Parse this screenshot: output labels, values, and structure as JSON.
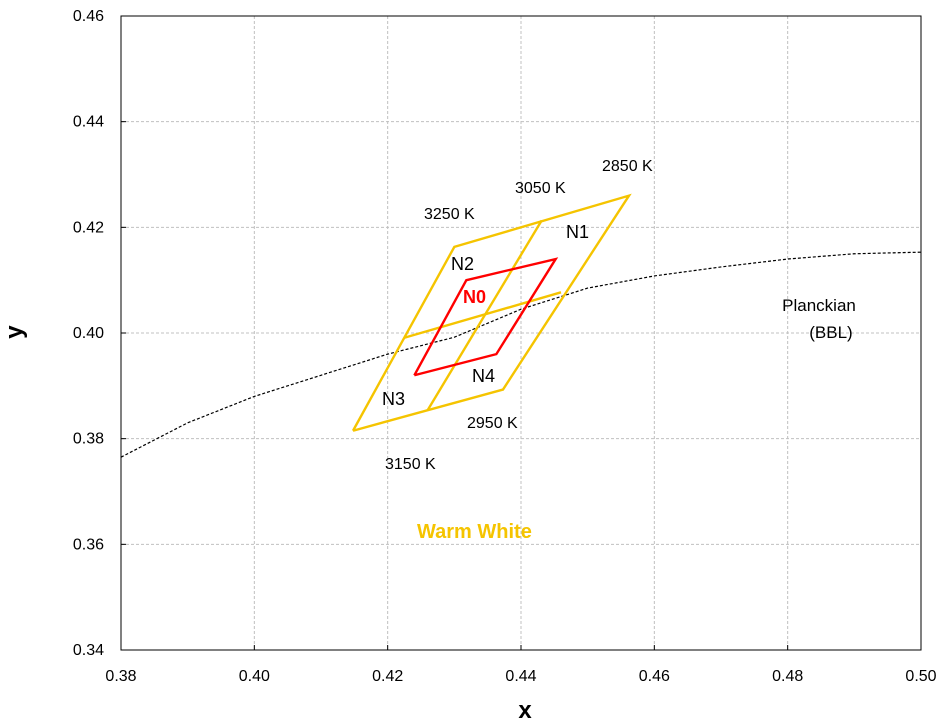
{
  "chart_data": {
    "type": "line",
    "xlabel": "x",
    "ylabel": "y",
    "xlim": [
      0.38,
      0.5
    ],
    "ylim": [
      0.34,
      0.46
    ],
    "grid": true,
    "x_ticks": [
      "0.38",
      "0.40",
      "0.42",
      "0.44",
      "0.46",
      "0.48",
      "0.50"
    ],
    "y_ticks": [
      "0.34",
      "0.36",
      "0.38",
      "0.40",
      "0.42",
      "0.44",
      "0.46"
    ],
    "x_tick_values": [
      0.38,
      0.4,
      0.42,
      0.44,
      0.46,
      0.48,
      0.5
    ],
    "y_tick_values": [
      0.34,
      0.36,
      0.38,
      0.4,
      0.42,
      0.44,
      0.46
    ],
    "colors": {
      "warm_white": "#f5c400",
      "n0": "#ff0000",
      "planckian": "#000000",
      "grid": "#c0c0c0"
    },
    "planckian": {
      "label_line1": "Planckian",
      "label_line2": "(BBL)",
      "x": [
        0.38,
        0.39,
        0.4,
        0.41,
        0.42,
        0.43,
        0.44,
        0.45,
        0.46,
        0.47,
        0.48,
        0.49,
        0.5
      ],
      "y": [
        0.3765,
        0.383,
        0.388,
        0.392,
        0.396,
        0.3992,
        0.4045,
        0.4085,
        0.4108,
        0.4125,
        0.414,
        0.415,
        0.4153
      ]
    },
    "series": [
      {
        "name": "Warm White",
        "polylines": [
          {
            "x": [
              0.4148,
              0.43,
              0.4562,
              0.4373,
              0.4148
            ],
            "y": [
              0.3815,
              0.4163,
              0.426,
              0.3893,
              0.3815
            ]
          },
          {
            "x": [
              0.426,
              0.4431
            ],
            "y": [
              0.3854,
              0.4213
            ]
          },
          {
            "x": [
              0.4225,
              0.446
            ],
            "y": [
              0.3991,
              0.4077
            ]
          }
        ]
      },
      {
        "name": "N0",
        "polylines": [
          {
            "x": [
              0.424,
              0.4318,
              0.4452,
              0.4363,
              0.424
            ],
            "y": [
              0.392,
              0.41,
              0.414,
              0.396,
              0.392
            ]
          }
        ]
      }
    ],
    "annotations": {
      "k2850": "2850 K",
      "k3050": "3050 K",
      "k3250": "3250 K",
      "k2950": "2950 K",
      "k3150": "3150 K",
      "n1": "N1",
      "n2": "N2",
      "n3": "N3",
      "n4": "N4",
      "n0": "N0",
      "warm_white": "Warm White"
    }
  }
}
